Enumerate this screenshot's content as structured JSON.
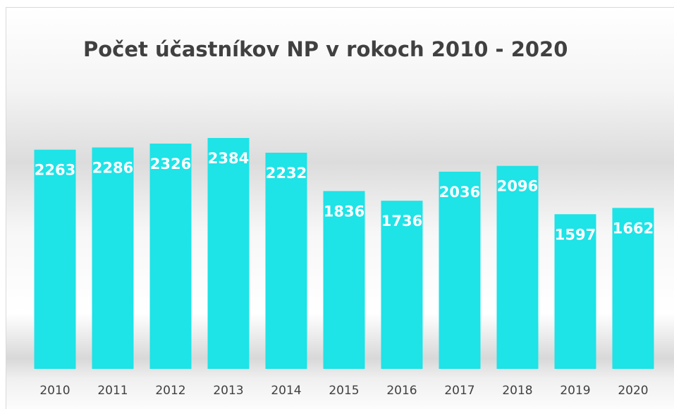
{
  "chart_data": {
    "type": "bar",
    "title": "Počet účastníkov NP v rokoch 2010 - 2020",
    "categories": [
      "2010",
      "2011",
      "2012",
      "2013",
      "2014",
      "2015",
      "2016",
      "2017",
      "2018",
      "2019",
      "2020"
    ],
    "values": [
      2263,
      2286,
      2326,
      2384,
      2232,
      1836,
      1736,
      2036,
      2096,
      1597,
      1662
    ],
    "color": "#1ee3e7"
  }
}
